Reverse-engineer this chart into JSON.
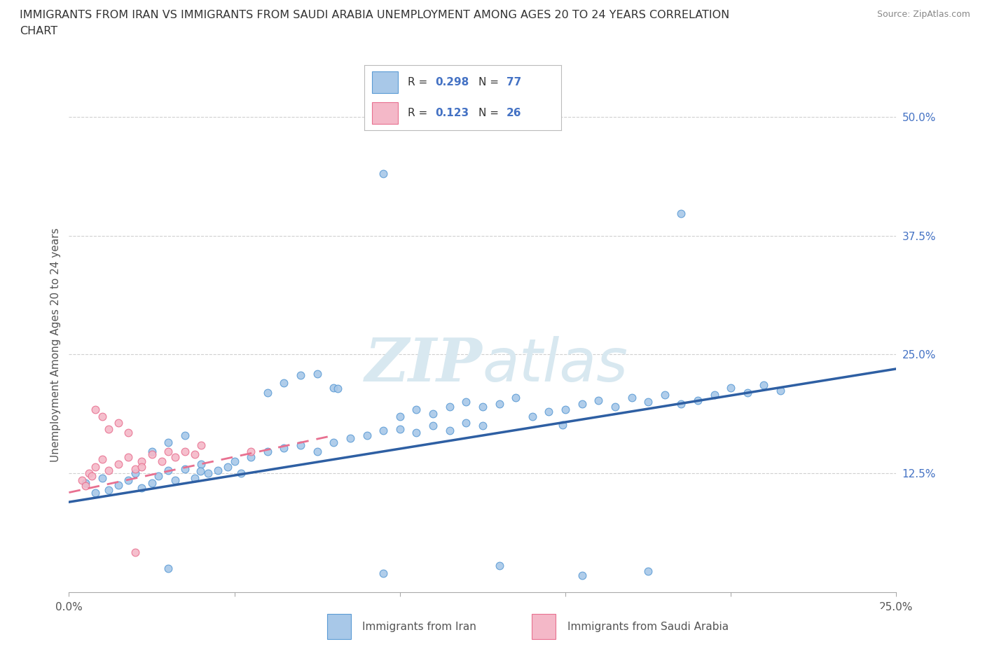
{
  "title_line1": "IMMIGRANTS FROM IRAN VS IMMIGRANTS FROM SAUDI ARABIA UNEMPLOYMENT AMONG AGES 20 TO 24 YEARS CORRELATION",
  "title_line2": "CHART",
  "source_text": "Source: ZipAtlas.com",
  "ylabel": "Unemployment Among Ages 20 to 24 years",
  "xlim": [
    0.0,
    0.25
  ],
  "ylim": [
    0.0,
    0.52
  ],
  "yticks": [
    0.0,
    0.125,
    0.25,
    0.375,
    0.5
  ],
  "yticklabels": [
    "",
    "12.5%",
    "25.0%",
    "37.5%",
    "50.0%"
  ],
  "iran_fill_color": "#a8c8e8",
  "iran_edge_color": "#5b9bd5",
  "saudi_fill_color": "#f4b8c8",
  "saudi_edge_color": "#e87090",
  "iran_line_color": "#2e5fa3",
  "saudi_line_color": "#e87090",
  "blue_text_color": "#4472c4",
  "axis_color": "#555555",
  "grid_color": "#d0d0d0",
  "watermark_color": "#d8e8f0",
  "background_color": "#ffffff",
  "iran_R": 0.298,
  "iran_N": 77,
  "saudi_R": 0.123,
  "saudi_N": 26,
  "iran_line_x0": 0.0,
  "iran_line_y0": 0.095,
  "iran_line_x1": 0.25,
  "iran_line_y1": 0.235,
  "saudi_line_x0": 0.0,
  "saudi_line_y0": 0.105,
  "saudi_line_x1": 0.08,
  "saudi_line_y1": 0.165
}
